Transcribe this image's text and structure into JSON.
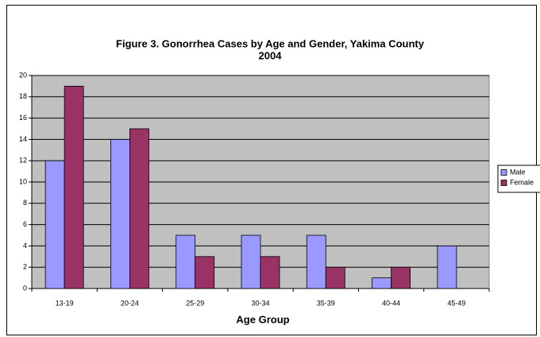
{
  "chart_data": {
    "type": "bar",
    "title": [
      "Figure 3. Gonorrhea Cases by Age and Gender, Yakima County",
      "2004"
    ],
    "x_label": "Age Group",
    "categories": [
      "13-19",
      "20-24",
      "25-29",
      "30-34",
      "35-39",
      "40-44",
      "45-49"
    ],
    "series": [
      {
        "name": "Male",
        "color": "#9999ff",
        "values": [
          12,
          14,
          5,
          5,
          5,
          1,
          4
        ]
      },
      {
        "name": "Female",
        "color": "#993366",
        "values": [
          19,
          15,
          3,
          3,
          2,
          2,
          0
        ]
      }
    ],
    "ylim": [
      0,
      20
    ],
    "yticks": [
      0,
      2,
      4,
      6,
      8,
      10,
      12,
      14,
      16,
      18,
      20
    ],
    "grid": true,
    "legend": "right"
  }
}
